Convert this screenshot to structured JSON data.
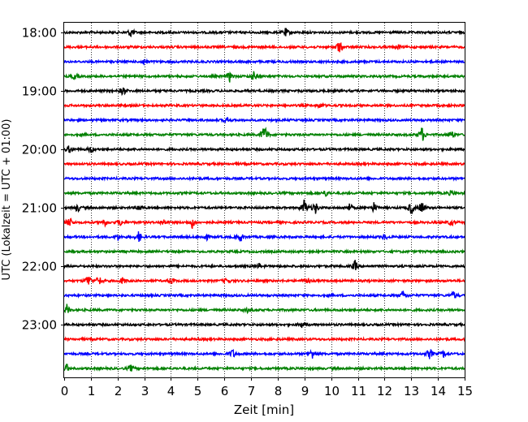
{
  "chart_data": {
    "type": "line",
    "title": "",
    "xlabel": "Zeit  [min]",
    "ylabel": "UTC (Lokalzeit = UTC + 01:00)",
    "xlim": [
      0,
      15
    ],
    "x_ticks": [
      0,
      1,
      2,
      3,
      4,
      5,
      6,
      7,
      8,
      9,
      10,
      11,
      12,
      13,
      14,
      15
    ],
    "x_tick_labels": [
      "0",
      "1",
      "2",
      "3",
      "4",
      "5",
      "6",
      "7",
      "8",
      "9",
      "10",
      "11",
      "12",
      "13",
      "14",
      "15"
    ],
    "y_tick_labels": [
      "18:00",
      "19:00",
      "20:00",
      "21:00",
      "22:00",
      "23:00"
    ],
    "y_tick_rows": [
      0,
      4,
      8,
      12,
      16,
      20
    ],
    "grid": true,
    "row_count": 24,
    "trace_colors": [
      "#000000",
      "#ff0000",
      "#0000ff",
      "#008000"
    ],
    "traces": [
      {
        "events": [
          [
            2.5,
            0.7
          ],
          [
            8.3,
            0.6
          ]
        ]
      },
      {
        "events": [
          [
            10.3,
            1.0
          ],
          [
            12.5,
            0.4
          ]
        ]
      },
      {
        "events": [
          [
            3.0,
            0.4
          ]
        ]
      },
      {
        "events": [
          [
            0.4,
            0.5
          ],
          [
            6.2,
            0.7
          ],
          [
            7.1,
            0.6
          ]
        ]
      },
      {
        "events": [
          [
            2.2,
            0.7
          ]
        ]
      },
      {
        "events": [
          [
            9.6,
            0.4
          ]
        ]
      },
      {
        "events": [
          [
            6.1,
            0.4
          ]
        ]
      },
      {
        "events": [
          [
            7.5,
            1.6
          ],
          [
            13.4,
            1.2
          ],
          [
            14.5,
            0.6
          ]
        ]
      },
      {
        "events": [
          [
            0.2,
            0.6
          ],
          [
            1.0,
            0.5
          ]
        ]
      },
      {
        "events": []
      },
      {
        "events": []
      },
      {
        "events": [
          [
            9.8,
            0.4
          ],
          [
            14.5,
            0.4
          ]
        ]
      },
      {
        "events": [
          [
            0.5,
            0.6
          ],
          [
            2.8,
            0.5
          ],
          [
            9.0,
            1.3
          ],
          [
            9.4,
            1.0
          ],
          [
            10.7,
            0.6
          ],
          [
            11.6,
            0.7
          ],
          [
            13.0,
            1.1
          ],
          [
            13.4,
            1.0
          ]
        ]
      },
      {
        "events": [
          [
            0.2,
            0.8
          ],
          [
            1.5,
            0.6
          ],
          [
            2.1,
            0.5
          ],
          [
            3.7,
            0.5
          ],
          [
            4.8,
            0.8
          ],
          [
            14.5,
            0.5
          ]
        ]
      },
      {
        "events": [
          [
            2.0,
            0.5
          ],
          [
            2.8,
            0.8
          ],
          [
            5.3,
            0.6
          ],
          [
            6.6,
            0.7
          ],
          [
            12.0,
            0.4
          ]
        ]
      },
      {
        "events": []
      },
      {
        "events": [
          [
            10.9,
            0.8
          ],
          [
            7.3,
            0.3
          ]
        ]
      },
      {
        "events": [
          [
            0.9,
            1.0
          ],
          [
            1.3,
            0.8
          ],
          [
            2.2,
            0.5
          ],
          [
            4.0,
            0.5
          ],
          [
            6.1,
            0.4
          ],
          [
            9.1,
            0.6
          ]
        ]
      },
      {
        "events": [
          [
            12.7,
            0.6
          ],
          [
            14.6,
            0.6
          ]
        ]
      },
      {
        "events": [
          [
            0.1,
            0.7
          ],
          [
            6.9,
            0.4
          ]
        ]
      },
      {
        "events": [
          [
            8.9,
            0.4
          ]
        ]
      },
      {
        "events": []
      },
      {
        "events": [
          [
            6.3,
            0.7
          ],
          [
            9.3,
            0.8
          ],
          [
            13.7,
            0.8
          ],
          [
            14.2,
            0.5
          ]
        ]
      },
      {
        "events": [
          [
            0.1,
            0.6
          ],
          [
            2.5,
            0.5
          ]
        ]
      }
    ]
  }
}
